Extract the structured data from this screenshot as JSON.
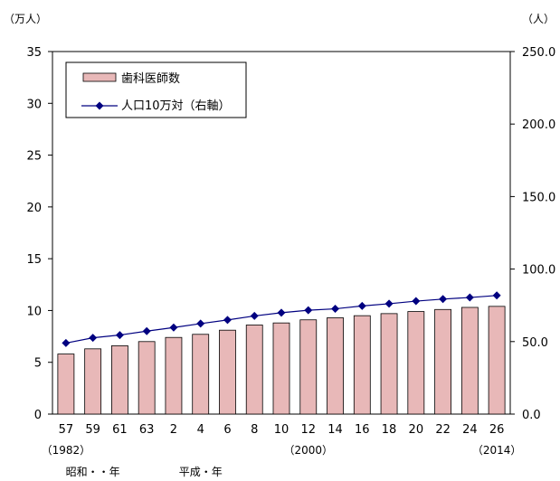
{
  "chart_data": {
    "type": "bar",
    "title": "",
    "left_axis_unit": "（万人）",
    "right_axis_unit": "（人）",
    "categories": [
      "57",
      "59",
      "61",
      "63",
      "2",
      "4",
      "6",
      "8",
      "10",
      "12",
      "14",
      "16",
      "18",
      "20",
      "22",
      "24",
      "26"
    ],
    "year_notes": [
      {
        "category": "57",
        "label": "（1982）"
      },
      {
        "category": "12",
        "label": "（2000）"
      },
      {
        "category": "26",
        "label": "（2014）"
      }
    ],
    "era_labels": [
      {
        "category": "59",
        "label": "昭和・・年"
      },
      {
        "category": "4",
        "label": "平成・年"
      }
    ],
    "series": [
      {
        "name": "歯科医師数",
        "type": "bar",
        "axis": "left",
        "color": "#e8b8b8",
        "values": [
          5.8,
          6.3,
          6.6,
          7.0,
          7.4,
          7.7,
          8.1,
          8.6,
          8.8,
          9.1,
          9.3,
          9.5,
          9.7,
          9.9,
          10.1,
          10.3,
          10.4
        ]
      },
      {
        "name": "人口10万対（右軸）",
        "type": "line",
        "axis": "right",
        "color": "#000080",
        "values": [
          49.0,
          52.6,
          54.5,
          57.2,
          59.7,
          62.4,
          64.9,
          67.7,
          69.9,
          71.6,
          72.6,
          74.6,
          76.1,
          77.9,
          79.3,
          80.4,
          81.8
        ]
      }
    ],
    "y_left": {
      "min": 0,
      "max": 35,
      "ticks": [
        "0",
        "5",
        "10",
        "15",
        "20",
        "25",
        "30",
        "35"
      ]
    },
    "y_right": {
      "min": 0,
      "max": 250,
      "ticks": [
        "0.0",
        "50.0",
        "100.0",
        "150.0",
        "200.0",
        "250.0"
      ]
    },
    "legend_position": "top-left"
  }
}
